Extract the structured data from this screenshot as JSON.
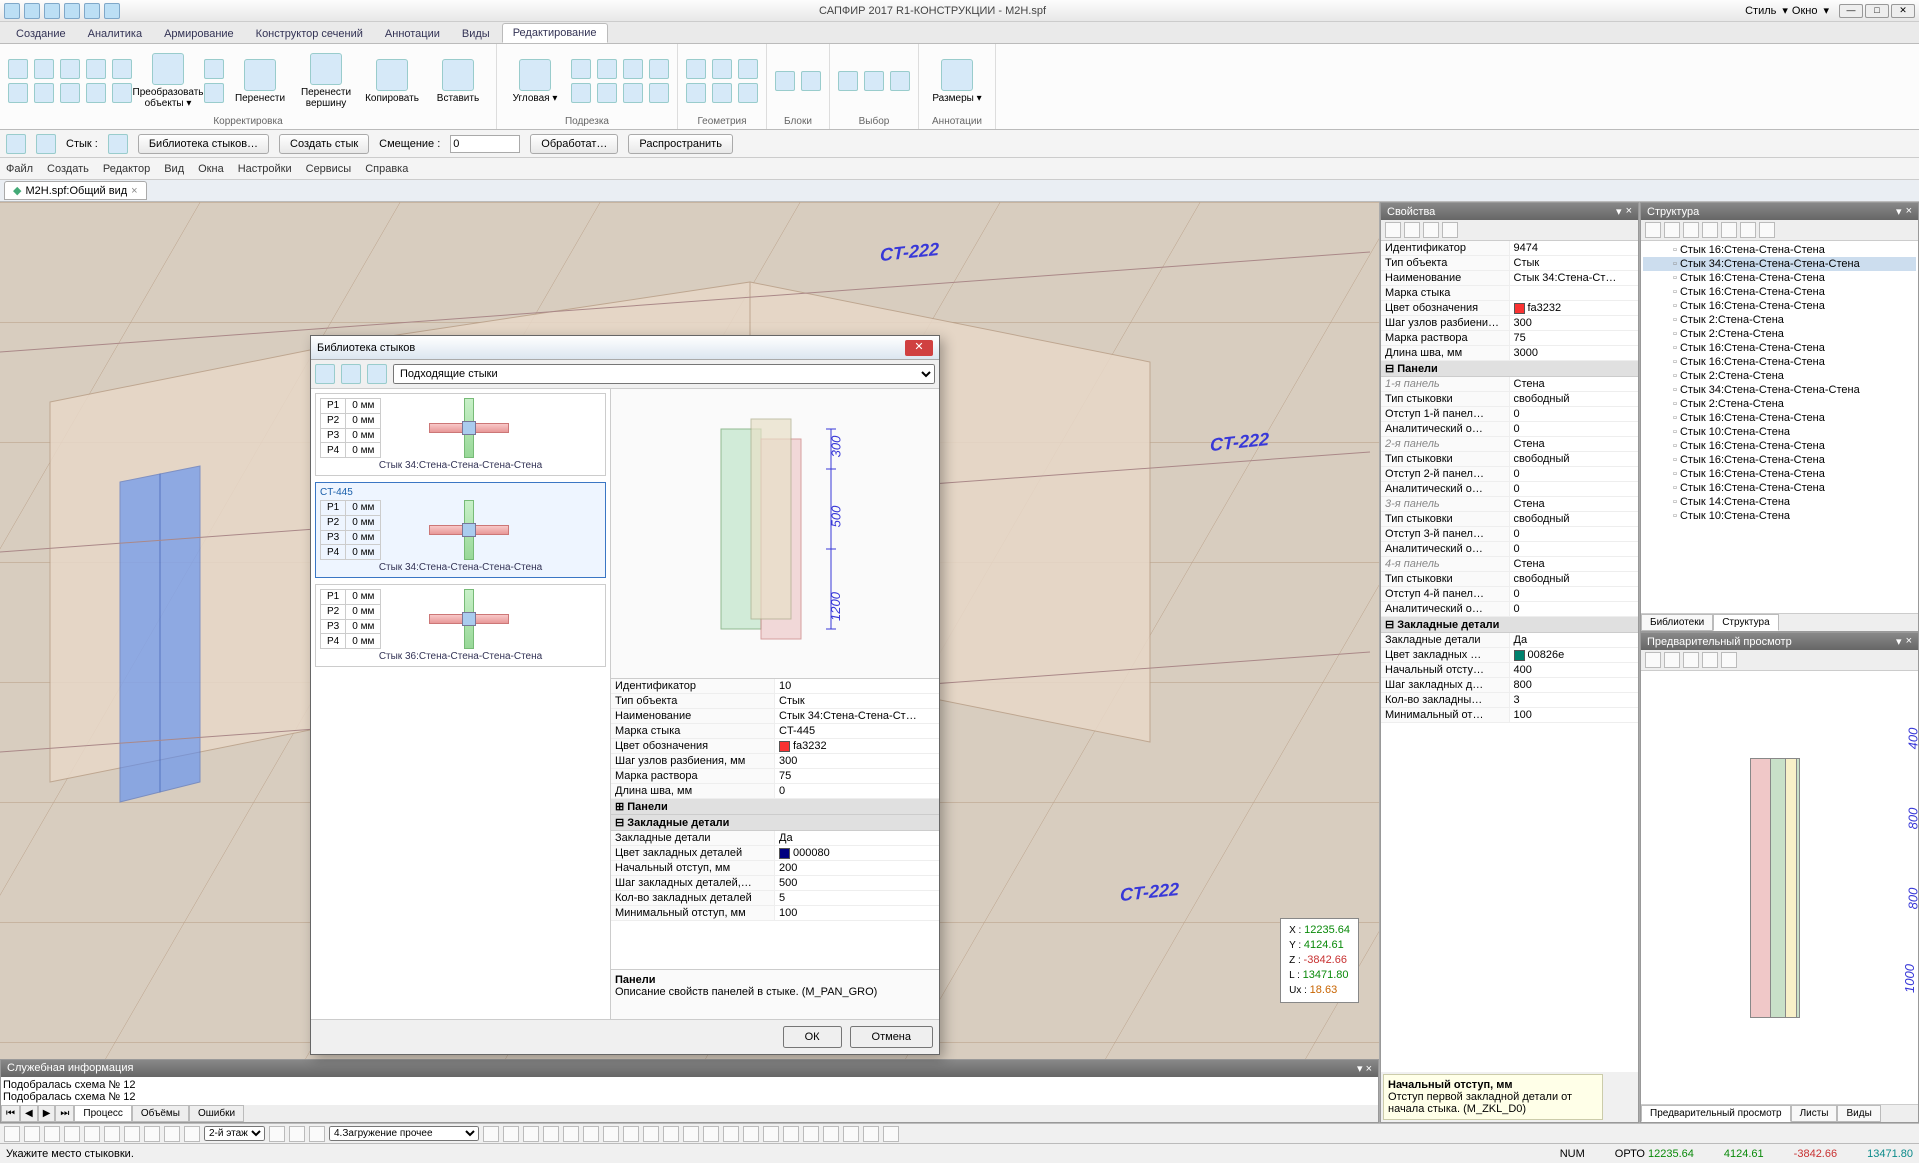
{
  "app": {
    "title": "САПФИР 2017 R1-КОНСТРУКЦИИ - M2H.spf",
    "style_label": "Стиль",
    "window_label": "Окно"
  },
  "ribtabs": [
    "Создание",
    "Аналитика",
    "Армирование",
    "Конструктор сечений",
    "Аннотации",
    "Виды",
    "Редактирование"
  ],
  "ribtab_active": 6,
  "ribbon": {
    "groups": [
      {
        "label": "Корректировка",
        "big": [
          {
            "t": "Преобразовать объекты ▾"
          },
          {
            "t": "Перенести"
          },
          {
            "t": "Перенести вершину"
          },
          {
            "t": "Копировать"
          },
          {
            "t": "Вставить"
          }
        ]
      },
      {
        "label": "Подрезка",
        "big": [
          {
            "t": "Угловая ▾"
          }
        ]
      },
      {
        "label": "Геометрия"
      },
      {
        "label": "Блоки"
      },
      {
        "label": "Выбор"
      },
      {
        "label": "Аннотации",
        "big": [
          {
            "t": "Размеры ▾"
          }
        ]
      }
    ]
  },
  "bar2": {
    "styk_label": "Стык :",
    "lib": "Библиотека стыков…",
    "create": "Создать стык",
    "offset_label": "Смещение :",
    "offset_val": "0",
    "process": "Обработат…",
    "spread": "Распространить"
  },
  "menu": [
    "Файл",
    "Создать",
    "Редактор",
    "Вид",
    "Окна",
    "Настройки",
    "Сервисы",
    "Справка"
  ],
  "doctab": "M2H.spf:Общий вид",
  "labels3d": [
    "CT-222",
    "CT-222",
    "CT-222"
  ],
  "coords": {
    "x": "12235.64",
    "y": "4124.61",
    "z": "-3842.66",
    "l": "13471.80",
    "u": "18.63"
  },
  "props_panel": {
    "title": "Свойства",
    "rows": [
      {
        "k": "Идентификатор",
        "v": "9474"
      },
      {
        "k": "Тип объекта",
        "v": "Стык"
      },
      {
        "k": "Наименование",
        "v": "Стык 34:Стена-Ст…"
      },
      {
        "k": "Марка стыка",
        "v": ""
      },
      {
        "k": "Цвет обозначения",
        "v": "fa3232",
        "color": "#fa3232"
      },
      {
        "k": "Шаг узлов разбиени…",
        "v": "300"
      },
      {
        "k": "Марка раствора",
        "v": "75"
      },
      {
        "k": "Длина шва, мм",
        "v": "3000"
      }
    ],
    "group_panels": "Панели",
    "panel_rows": [
      {
        "k": "1-я панель",
        "v": "Стена",
        "grp": true
      },
      {
        "k": "Тип стыковки",
        "v": "свободный"
      },
      {
        "k": "Отступ 1-й панел…",
        "v": "0"
      },
      {
        "k": "Аналитический о…",
        "v": "0"
      },
      {
        "k": "2-я панель",
        "v": "Стена",
        "grp": true
      },
      {
        "k": "Тип стыковки",
        "v": "свободный"
      },
      {
        "k": "Отступ 2-й панел…",
        "v": "0"
      },
      {
        "k": "Аналитический о…",
        "v": "0"
      },
      {
        "k": "3-я панель",
        "v": "Стена",
        "grp": true
      },
      {
        "k": "Тип стыковки",
        "v": "свободный"
      },
      {
        "k": "Отступ 3-й панел…",
        "v": "0"
      },
      {
        "k": "Аналитический о…",
        "v": "0"
      },
      {
        "k": "4-я панель",
        "v": "Стена",
        "grp": true
      },
      {
        "k": "Тип стыковки",
        "v": "свободный"
      },
      {
        "k": "Отступ 4-й панел…",
        "v": "0"
      },
      {
        "k": "Аналитический о…",
        "v": "0"
      }
    ],
    "group_zak": "Закладные детали",
    "zak_rows": [
      {
        "k": "Закладные детали",
        "v": "Да"
      },
      {
        "k": "Цвет закладных …",
        "v": "00826e",
        "color": "#00826e"
      },
      {
        "k": "Начальный отсту…",
        "v": "400"
      },
      {
        "k": "Шаг закладных д…",
        "v": "800"
      },
      {
        "k": "Кол-во закладны…",
        "v": "3"
      },
      {
        "k": "Минимальный от…",
        "v": "100"
      }
    ],
    "hint_title": "Начальный отступ, мм",
    "hint_body": "Отступ первой закладной детали от начала стыка. (M_ZKL_D0)"
  },
  "struct_panel": {
    "title": "Структура",
    "nodes": [
      "Стык 16:Стена-Стена-Стена",
      "Стык 34:Стена-Стена-Стена-Стена",
      "Стык 16:Стена-Стена-Стена",
      "Стык 16:Стена-Стена-Стена",
      "Стык 16:Стена-Стена-Стена",
      "Стык 2:Стена-Стена",
      "Стык 2:Стена-Стена",
      "Стык 16:Стена-Стена-Стена",
      "Стык 16:Стена-Стена-Стена",
      "Стык 2:Стена-Стена",
      "Стык 34:Стена-Стена-Стена-Стена",
      "Стык 2:Стена-Стена",
      "Стык 16:Стена-Стена-Стена",
      "Стык 10:Стена-Стена",
      "Стык 16:Стена-Стена-Стена",
      "Стык 16:Стена-Стена-Стена",
      "Стык 16:Стена-Стена-Стена",
      "Стык 16:Стена-Стена-Стена",
      "Стык 14:Стена-Стена",
      "Стык 10:Стена-Стена"
    ],
    "tabs": [
      "Библиотеки",
      "Структура"
    ],
    "tab_active": 1
  },
  "preview_panel": {
    "title": "Предварительный просмотр",
    "dims": [
      "400",
      "800",
      "800",
      "1000"
    ],
    "tabs": [
      "Предварительный просмотр",
      "Листы",
      "Виды"
    ],
    "tab_active": 0
  },
  "dialog": {
    "title": "Библиотека стыков",
    "filter": "Подходящие стыки",
    "items": [
      {
        "caption": "Стык 34:Стена-Стена-Стена-Стена",
        "params": [
          [
            "P1",
            "0 мм"
          ],
          [
            "P2",
            "0 мм"
          ],
          [
            "P3",
            "0 мм"
          ],
          [
            "P4",
            "0 мм"
          ]
        ]
      },
      {
        "ct": "CT-445",
        "caption": "Стык 34:Стена-Стена-Стена-Стена",
        "params": [
          [
            "P1",
            "0 мм"
          ],
          [
            "P2",
            "0 мм"
          ],
          [
            "P3",
            "0 мм"
          ],
          [
            "P4",
            "0 мм"
          ]
        ],
        "sel": true
      },
      {
        "caption": "Стык 36:Стена-Стена-Стена-Стена",
        "params": [
          [
            "P1",
            "0 мм"
          ],
          [
            "P2",
            "0 мм"
          ],
          [
            "P3",
            "0 мм"
          ],
          [
            "P4",
            "0 мм"
          ]
        ]
      }
    ],
    "preview_dims": [
      "300",
      "500",
      "1200"
    ],
    "props": [
      {
        "k": "Идентификатор",
        "v": "10"
      },
      {
        "k": "Тип объекта",
        "v": "Стык"
      },
      {
        "k": "Наименование",
        "v": "Стык 34:Стена-Стена-Ст…"
      },
      {
        "k": "Марка стыка",
        "v": "CT-445"
      },
      {
        "k": "Цвет обозначения",
        "v": "fa3232",
        "color": "#fa3232"
      },
      {
        "k": "Шаг узлов разбиения, мм",
        "v": "300"
      },
      {
        "k": "Марка раствора",
        "v": "75"
      },
      {
        "k": "Длина шва, мм",
        "v": "0"
      }
    ],
    "group_panels": "Панели",
    "group_zak": "Закладные детали",
    "zak": [
      {
        "k": "Закладные детали",
        "v": "Да"
      },
      {
        "k": "Цвет закладных деталей",
        "v": "000080",
        "color": "#000080"
      },
      {
        "k": "Начальный отступ, мм",
        "v": "200"
      },
      {
        "k": "Шаг закладных деталей,…",
        "v": "500"
      },
      {
        "k": "Кол-во закладных деталей",
        "v": "5"
      },
      {
        "k": "Минимальный отступ, мм",
        "v": "100"
      }
    ],
    "help_title": "Панели",
    "help_body": "Описание свойств панелей в стыке. (M_PAN_GRO)",
    "ok": "ОК",
    "cancel": "Отмена"
  },
  "bottom": {
    "title": "Служебная информация",
    "lines": [
      "Подобралась схема № 12",
      "Подобралась схема № 12"
    ],
    "tabs": [
      "Процесс",
      "Объёмы",
      "Ошибки"
    ]
  },
  "sb1": {
    "floor": "2-й этаж",
    "load": "4.Загружение прочее"
  },
  "sb2": {
    "hint": "Укажите место стыковки.",
    "num": "NUM",
    "orto": "ОРТО",
    "x": "12235.64",
    "y": "4124.61",
    "z": "-3842.66",
    "l": "13471.80"
  },
  "colors": {
    "wall": "#e8d8c8",
    "wall_edge": "#baa088",
    "floor": "#d8cdbf",
    "sel": "#4080ff",
    "accent_green": "#90d890",
    "accent_pink": "#f0b8b8"
  }
}
